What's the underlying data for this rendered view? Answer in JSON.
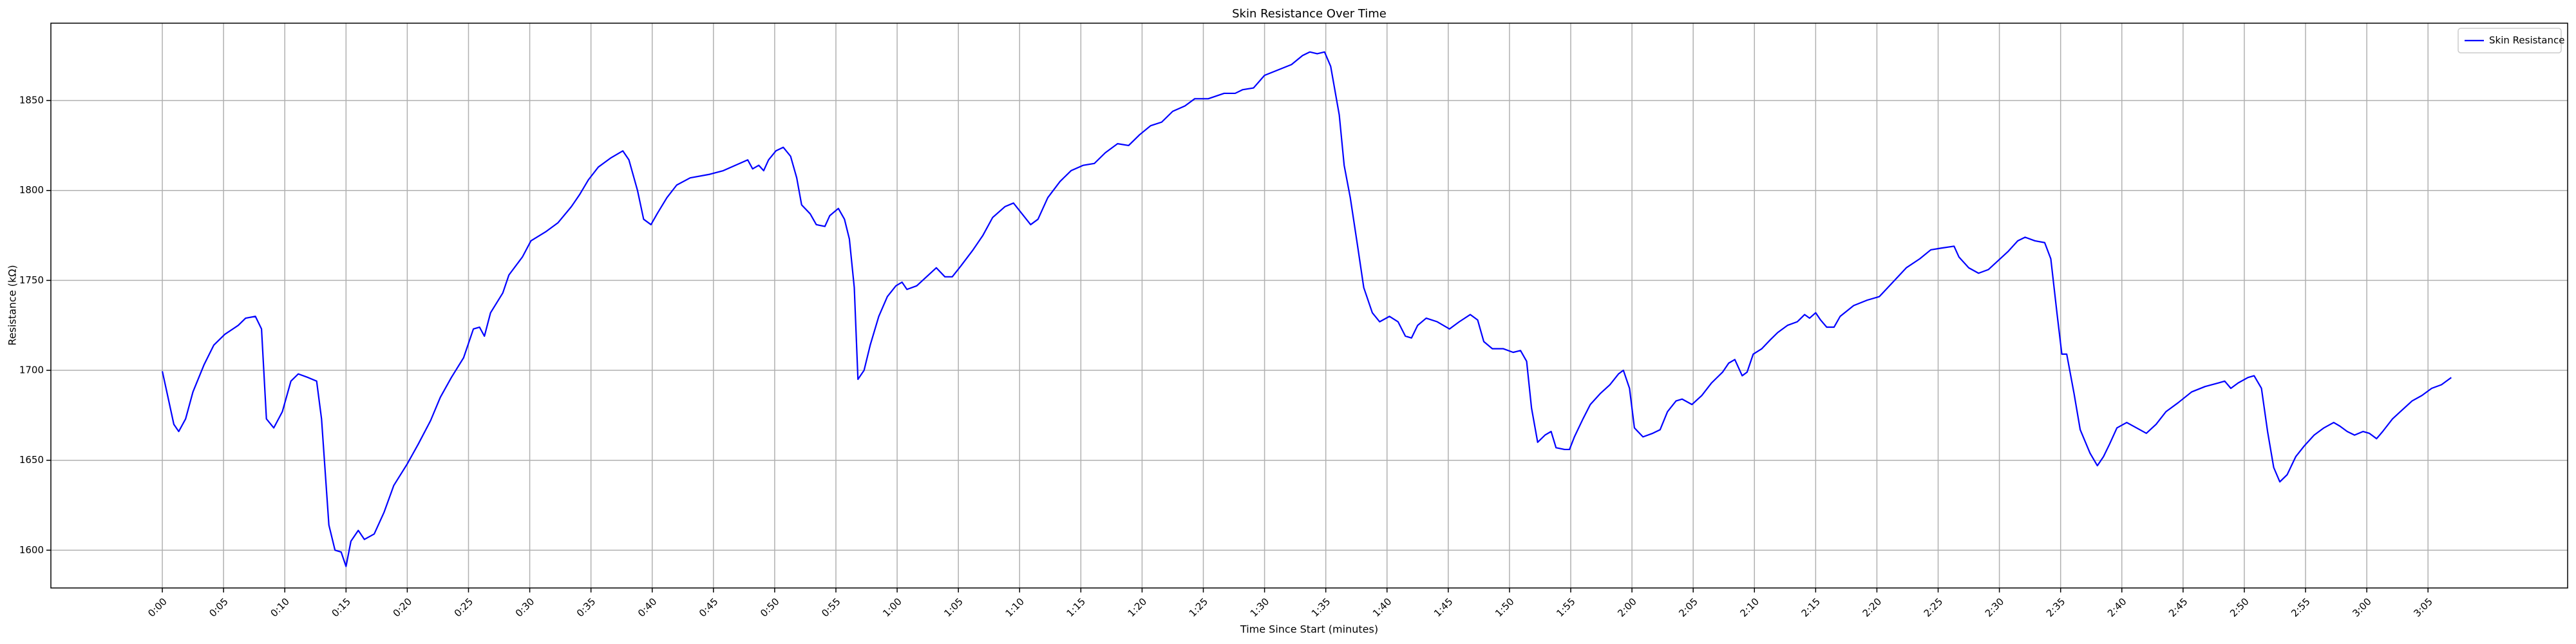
{
  "chart_data": {
    "type": "line",
    "title": "Skin Resistance Over Time",
    "x_label": "Time Since Start (minutes)",
    "y_label": "Resistance (kΩ)",
    "xlim": [
      -9.1,
      196.4
    ],
    "ylim": [
      1579,
      1893
    ],
    "grid": true,
    "legend": "upper right",
    "xticks": [
      {
        "value": 0,
        "label": "0:00"
      },
      {
        "value": 5,
        "label": "0:05"
      },
      {
        "value": 10,
        "label": "0:10"
      },
      {
        "value": 15,
        "label": "0:15"
      },
      {
        "value": 20,
        "label": "0:20"
      },
      {
        "value": 25,
        "label": "0:25"
      },
      {
        "value": 30,
        "label": "0:30"
      },
      {
        "value": 35,
        "label": "0:35"
      },
      {
        "value": 40,
        "label": "0:40"
      },
      {
        "value": 45,
        "label": "0:45"
      },
      {
        "value": 50,
        "label": "0:50"
      },
      {
        "value": 55,
        "label": "0:55"
      },
      {
        "value": 60,
        "label": "1:00"
      },
      {
        "value": 65,
        "label": "1:05"
      },
      {
        "value": 70,
        "label": "1:10"
      },
      {
        "value": 75,
        "label": "1:15"
      },
      {
        "value": 80,
        "label": "1:20"
      },
      {
        "value": 85,
        "label": "1:25"
      },
      {
        "value": 90,
        "label": "1:30"
      },
      {
        "value": 95,
        "label": "1:35"
      },
      {
        "value": 100,
        "label": "1:40"
      },
      {
        "value": 105,
        "label": "1:45"
      },
      {
        "value": 110,
        "label": "1:50"
      },
      {
        "value": 115,
        "label": "1:55"
      },
      {
        "value": 120,
        "label": "2:00"
      },
      {
        "value": 125,
        "label": "2:05"
      },
      {
        "value": 130,
        "label": "2:10"
      },
      {
        "value": 135,
        "label": "2:15"
      },
      {
        "value": 140,
        "label": "2:20"
      },
      {
        "value": 145,
        "label": "2:25"
      },
      {
        "value": 150,
        "label": "2:30"
      },
      {
        "value": 155,
        "label": "2:35"
      },
      {
        "value": 160,
        "label": "2:40"
      },
      {
        "value": 165,
        "label": "2:45"
      },
      {
        "value": 170,
        "label": "2:50"
      },
      {
        "value": 175,
        "label": "2:55"
      },
      {
        "value": 180,
        "label": "3:00"
      },
      {
        "value": 185,
        "label": "3:05"
      }
    ],
    "yticks": [
      1600,
      1650,
      1700,
      1750,
      1800,
      1850
    ],
    "x": [
      0,
      0.4,
      0.94,
      1.34,
      1.9,
      2.5,
      3.4,
      4.2,
      5.1,
      6.2,
      6.8,
      7.6,
      8.1,
      8.5,
      9.1,
      9.8,
      10.5,
      11.1,
      11.9,
      12.6,
      13.0,
      13.6,
      14.1,
      14.6,
      15.0,
      15.4,
      16.0,
      16.5,
      17.3,
      18.1,
      18.9,
      20.0,
      20.9,
      21.9,
      22.7,
      23.6,
      24.6,
      25.4,
      25.9,
      26.3,
      26.8,
      27.8,
      28.3,
      29.4,
      30.1,
      31.3,
      32.3,
      33.4,
      34.1,
      34.8,
      35.6,
      36.6,
      37.6,
      38.1,
      38.8,
      39.3,
      39.9,
      40.4,
      41.2,
      42.0,
      43.1,
      44.7,
      45.8,
      46.8,
      47.8,
      48.2,
      48.7,
      49.1,
      49.5,
      50.1,
      50.7,
      51.3,
      51.8,
      52.2,
      52.9,
      53.4,
      54.1,
      54.5,
      55.2,
      55.7,
      56.1,
      56.5,
      56.8,
      57.3,
      57.8,
      58.5,
      59.2,
      59.9,
      60.4,
      60.8,
      61.6,
      62.4,
      63.2,
      63.9,
      64.5,
      65.2,
      66.2,
      67.0,
      67.8,
      68.8,
      69.5,
      70.2,
      70.9,
      71.5,
      72.3,
      73.3,
      74.2,
      75.2,
      76.1,
      77.0,
      78.0,
      78.9,
      79.8,
      80.7,
      81.6,
      82.5,
      83.5,
      84.3,
      85.4,
      86.7,
      87.6,
      88.2,
      89.1,
      90.0,
      91.1,
      92.2,
      93.1,
      93.7,
      94.3,
      94.9,
      95.4,
      96.1,
      96.5,
      97.0,
      97.6,
      98.1,
      98.8,
      99.4,
      100.2,
      100.9,
      101.5,
      102.0,
      102.5,
      103.2,
      104.1,
      105.1,
      105.9,
      106.8,
      107.4,
      107.9,
      108.6,
      109.5,
      110.3,
      110.9,
      111.4,
      111.8,
      112.3,
      112.9,
      113.4,
      113.8,
      114.5,
      114.9,
      115.3,
      116.0,
      116.6,
      117.4,
      118.2,
      118.9,
      119.3,
      119.8,
      120.2,
      120.9,
      121.7,
      122.3,
      122.9,
      123.6,
      124.1,
      124.9,
      125.7,
      126.5,
      127.4,
      127.9,
      128.4,
      129.0,
      129.4,
      129.9,
      130.6,
      131.3,
      131.9,
      132.7,
      133.5,
      134.1,
      134.5,
      135.0,
      135.4,
      135.9,
      136.5,
      137.0,
      138.1,
      139.2,
      140.2,
      141.3,
      142.4,
      143.5,
      144.4,
      145.3,
      146.3,
      146.7,
      147.5,
      148.3,
      149.1,
      149.9,
      150.7,
      151.5,
      152.1,
      152.9,
      153.7,
      154.2,
      154.7,
      155.1,
      155.5,
      156.1,
      156.6,
      157.4,
      158.0,
      158.5,
      159.0,
      159.6,
      160.4,
      161.2,
      162.0,
      162.8,
      163.6,
      164.6,
      165.7,
      166.8,
      167.9,
      168.4,
      168.9,
      169.5,
      170.3,
      170.8,
      171.4,
      171.9,
      172.4,
      172.9,
      173.5,
      174.2,
      174.9,
      175.7,
      176.5,
      177.3,
      177.8,
      178.4,
      179.0,
      179.7,
      180.2,
      180.8,
      181.3,
      182.1,
      182.9,
      183.7,
      184.5,
      185.3,
      186.1,
      186.9
    ],
    "series": [
      {
        "name": "Skin Resistance",
        "color": "#0000ff",
        "values": [
          1699.5,
          1687,
          1670,
          1666,
          1673,
          1688,
          1703,
          1714,
          1720,
          1725,
          1729,
          1730,
          1723,
          1673,
          1668,
          1677,
          1694,
          1698,
          1696,
          1694,
          1673,
          1614,
          1600,
          1599,
          1591,
          1605,
          1611,
          1606,
          1609,
          1621,
          1636,
          1648,
          1659,
          1672,
          1685,
          1696,
          1707,
          1723,
          1724,
          1719,
          1732,
          1743,
          1753,
          1763,
          1772,
          1777,
          1782,
          1791,
          1798,
          1806,
          1813,
          1818,
          1822,
          1817,
          1800,
          1784,
          1781,
          1787,
          1796,
          1803,
          1807,
          1809,
          1811,
          1814,
          1817,
          1812,
          1814,
          1811,
          1817,
          1822,
          1824,
          1819,
          1807,
          1792,
          1787,
          1781,
          1780,
          1786,
          1790,
          1784,
          1773,
          1746,
          1695,
          1700,
          1714,
          1730,
          1741,
          1747,
          1749,
          1745,
          1747,
          1752,
          1757,
          1752,
          1752,
          1758,
          1767,
          1775,
          1785,
          1791,
          1793,
          1787,
          1781,
          1784,
          1796,
          1805,
          1811,
          1814,
          1815,
          1821,
          1826,
          1825,
          1831,
          1836,
          1838,
          1844,
          1847,
          1851,
          1851,
          1854,
          1854,
          1856,
          1857,
          1864,
          1867,
          1870,
          1875,
          1877,
          1876,
          1877,
          1869,
          1842,
          1814,
          1796,
          1769,
          1746,
          1732,
          1727,
          1730,
          1727,
          1719,
          1718,
          1725,
          1729,
          1727,
          1723,
          1727,
          1731,
          1728,
          1716,
          1712,
          1712,
          1710,
          1711,
          1705,
          1679,
          1660,
          1664,
          1666,
          1657,
          1656,
          1656,
          1663,
          1673,
          1681,
          1687,
          1692,
          1698,
          1700,
          1690,
          1668,
          1663,
          1665,
          1667,
          1677,
          1683,
          1684,
          1681,
          1686,
          1693,
          1699,
          1704,
          1706,
          1697,
          1699,
          1709,
          1712,
          1717,
          1721,
          1725,
          1727,
          1731,
          1729,
          1732,
          1728,
          1724,
          1724,
          1730,
          1736,
          1739,
          1741,
          1749,
          1757,
          1762,
          1767,
          1768,
          1769,
          1763,
          1757,
          1754,
          1756,
          1761,
          1766,
          1772,
          1774,
          1772,
          1771,
          1762,
          1732,
          1709,
          1709,
          1687,
          1667,
          1654,
          1647,
          1652,
          1659,
          1668,
          1671,
          1668,
          1665,
          1670,
          1677,
          1682,
          1688,
          1691,
          1693,
          1694,
          1690,
          1693,
          1696,
          1697,
          1690,
          1666,
          1646,
          1638,
          1642,
          1652,
          1658,
          1664,
          1668,
          1671,
          1669,
          1666,
          1664,
          1666,
          1665,
          1662,
          1666,
          1673,
          1678,
          1683,
          1686,
          1690,
          1692,
          1696
        ]
      }
    ]
  }
}
